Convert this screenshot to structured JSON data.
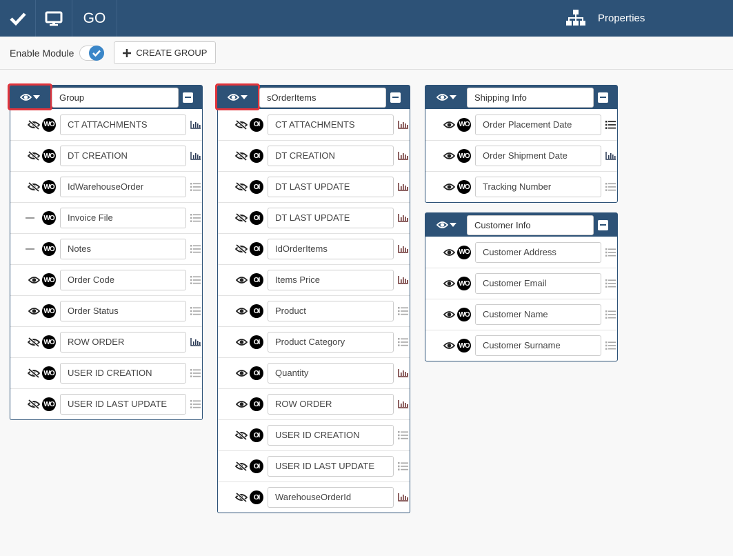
{
  "topbar": {
    "go_label": "GO",
    "properties_label": "Properties"
  },
  "toolbar": {
    "enable_label": "Enable Module",
    "enabled": true,
    "create_label": "CREATE GROUP"
  },
  "colors": {
    "primary": "#2d5277",
    "highlight": "#e0343c",
    "toggle": "#3a86c8"
  },
  "panels": [
    {
      "title": "Group",
      "badge": "WO",
      "highlighted": true,
      "fields": [
        {
          "label": "CT ATTACHMENTS",
          "visibility": "hidden",
          "type": "chart"
        },
        {
          "label": "DT CREATION",
          "visibility": "hidden",
          "type": "chart"
        },
        {
          "label": "IdWarehouseOrder",
          "visibility": "hidden",
          "type": "list"
        },
        {
          "label": "Invoice File",
          "visibility": "none",
          "type": "list"
        },
        {
          "label": "Notes",
          "visibility": "none",
          "type": "list"
        },
        {
          "label": "Order Code",
          "visibility": "visible",
          "type": "list"
        },
        {
          "label": "Order Status",
          "visibility": "visible",
          "type": "list"
        },
        {
          "label": "ROW ORDER",
          "visibility": "hidden",
          "type": "chart"
        },
        {
          "label": "USER ID CREATION",
          "visibility": "hidden",
          "type": "list"
        },
        {
          "label": "USER ID LAST UPDATE",
          "visibility": "hidden",
          "type": "list"
        }
      ]
    },
    {
      "title": "sOrderItems",
      "badge": "OI",
      "highlighted": true,
      "fields": [
        {
          "label": "CT ATTACHMENTS",
          "visibility": "hidden",
          "type": "chart"
        },
        {
          "label": "DT CREATION",
          "visibility": "hidden",
          "type": "chart"
        },
        {
          "label": "DT LAST UPDATE",
          "visibility": "hidden",
          "type": "chart"
        },
        {
          "label": "DT LAST UPDATE",
          "visibility": "hidden",
          "type": "chart"
        },
        {
          "label": "IdOrderItems",
          "visibility": "hidden",
          "type": "chart"
        },
        {
          "label": "Items Price",
          "visibility": "visible",
          "type": "chart"
        },
        {
          "label": "Product",
          "visibility": "visible",
          "type": "list"
        },
        {
          "label": "Product Category",
          "visibility": "visible",
          "type": "list"
        },
        {
          "label": "Quantity",
          "visibility": "visible",
          "type": "chart"
        },
        {
          "label": "ROW ORDER",
          "visibility": "visible",
          "type": "chart"
        },
        {
          "label": "USER ID CREATION",
          "visibility": "hidden",
          "type": "list"
        },
        {
          "label": "USER ID LAST UPDATE",
          "visibility": "hidden",
          "type": "list"
        },
        {
          "label": "WarehouseOrderId",
          "visibility": "hidden",
          "type": "chart"
        }
      ]
    },
    {
      "title": "Shipping Info",
      "badge": "WO",
      "highlighted": false,
      "fields": [
        {
          "label": "Order Placement Date",
          "visibility": "visible",
          "type": "list-active"
        },
        {
          "label": "Order Shipment Date",
          "visibility": "visible",
          "type": "chart"
        },
        {
          "label": "Tracking Number",
          "visibility": "visible",
          "type": "list"
        }
      ]
    },
    {
      "title": "Customer Info",
      "badge": "WO",
      "highlighted": false,
      "fields": [
        {
          "label": "Customer Address",
          "visibility": "visible",
          "type": "list"
        },
        {
          "label": "Customer Email",
          "visibility": "visible",
          "type": "list"
        },
        {
          "label": "Customer Name",
          "visibility": "visible",
          "type": "list"
        },
        {
          "label": "Customer Surname",
          "visibility": "visible",
          "type": "list"
        }
      ]
    }
  ]
}
